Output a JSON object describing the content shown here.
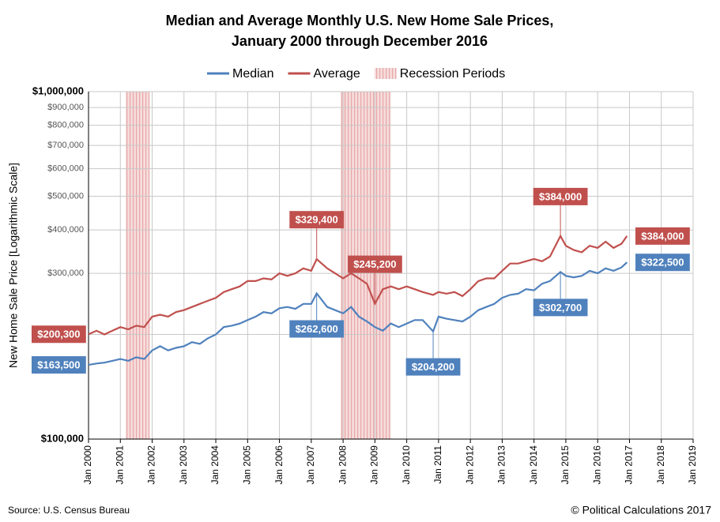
{
  "chart_data": {
    "type": "line",
    "title": [
      "Median and Average Monthly U.S. New Home Sale Prices,",
      "January 2000 through December 2016"
    ],
    "y_label": "New Home Sale Price [Logarithmic Scale]",
    "source": "Source: U.S. Census Bureau",
    "credit": "© Political Calculations 2017",
    "log_scale": true,
    "grid": true,
    "legend": "top",
    "xlim": [
      2000,
      2019
    ],
    "xticks": [
      {
        "value": 2000,
        "label": "Jan 2000"
      },
      {
        "value": 2001,
        "label": "Jan 2001"
      },
      {
        "value": 2002,
        "label": "Jan 2002"
      },
      {
        "value": 2003,
        "label": "Jan 2003"
      },
      {
        "value": 2004,
        "label": "Jan 2004"
      },
      {
        "value": 2005,
        "label": "Jan 2005"
      },
      {
        "value": 2006,
        "label": "Jan 2006"
      },
      {
        "value": 2007,
        "label": "Jan 2007"
      },
      {
        "value": 2008,
        "label": "Jan 2008"
      },
      {
        "value": 2009,
        "label": "Jan 2009"
      },
      {
        "value": 2010,
        "label": "Jan 2010"
      },
      {
        "value": 2011,
        "label": "Jan 2011"
      },
      {
        "value": 2012,
        "label": "Jan 2012"
      },
      {
        "value": 2013,
        "label": "Jan 2013"
      },
      {
        "value": 2014,
        "label": "Jan 2014"
      },
      {
        "value": 2015,
        "label": "Jan 2015"
      },
      {
        "value": 2016,
        "label": "Jan 2016"
      },
      {
        "value": 2017,
        "label": "Jan 2017"
      },
      {
        "value": 2018,
        "label": "Jan 2018"
      },
      {
        "value": 2019,
        "label": "Jan 2019"
      }
    ],
    "ylim": [
      100000,
      1000000
    ],
    "yticks": [
      {
        "value": 100000,
        "label": "$100,000"
      },
      {
        "value": 200000,
        "label": "$200,000"
      },
      {
        "value": 300000,
        "label": "$300,000"
      },
      {
        "value": 400000,
        "label": "$400,000"
      },
      {
        "value": 500000,
        "label": "$500,000"
      },
      {
        "value": 600000,
        "label": "$600,000"
      },
      {
        "value": 700000,
        "label": "$700,000"
      },
      {
        "value": 800000,
        "label": "$800,000"
      },
      {
        "value": 900000,
        "label": "$900,000"
      },
      {
        "value": 1000000,
        "label": "$1,000,000"
      }
    ],
    "recessions": {
      "name": "Recession Periods",
      "color": "#e8a0a0",
      "periods": [
        [
          2001.17,
          2001.92
        ],
        [
          2007.92,
          2009.5
        ]
      ]
    },
    "x": [
      2000,
      2000.25,
      2000.5,
      2000.75,
      2001,
      2001.25,
      2001.5,
      2001.75,
      2002,
      2002.25,
      2002.5,
      2002.75,
      2003,
      2003.25,
      2003.5,
      2003.75,
      2004,
      2004.25,
      2004.5,
      2004.75,
      2005,
      2005.25,
      2005.5,
      2005.75,
      2006,
      2006.25,
      2006.5,
      2006.75,
      2007,
      2007.17,
      2007.5,
      2007.75,
      2008,
      2008.25,
      2008.5,
      2008.75,
      2009,
      2009.25,
      2009.5,
      2009.75,
      2010,
      2010.25,
      2010.5,
      2010.83,
      2011,
      2011.25,
      2011.5,
      2011.75,
      2012,
      2012.25,
      2012.5,
      2012.75,
      2013,
      2013.25,
      2013.5,
      2013.75,
      2014,
      2014.25,
      2014.5,
      2014.83,
      2015,
      2015.25,
      2015.5,
      2015.75,
      2016,
      2016.25,
      2016.5,
      2016.75,
      2016.92
    ],
    "series": [
      {
        "name": "Median",
        "color": "#4f81bd",
        "values": [
          163500,
          165000,
          166000,
          168000,
          170000,
          168000,
          172000,
          170000,
          180000,
          185000,
          180000,
          183000,
          185000,
          190000,
          188000,
          195000,
          200000,
          210000,
          212000,
          215000,
          220000,
          225000,
          232000,
          230000,
          238000,
          240000,
          237000,
          245000,
          245000,
          262600,
          240000,
          235000,
          230000,
          240000,
          225000,
          218000,
          210000,
          205000,
          215000,
          210000,
          215000,
          220000,
          220000,
          204200,
          225000,
          222000,
          220000,
          218000,
          225000,
          235000,
          240000,
          245000,
          255000,
          260000,
          262000,
          270000,
          268000,
          280000,
          285000,
          302700,
          295000,
          292000,
          295000,
          305000,
          300000,
          310000,
          305000,
          312000,
          322500
        ],
        "value_labels": [
          "$163,500",
          null,
          null,
          null,
          null,
          null,
          null,
          null,
          null,
          null,
          null,
          null,
          null,
          null,
          null,
          null,
          null,
          null,
          null,
          null,
          null,
          null,
          null,
          null,
          null,
          null,
          null,
          null,
          null,
          "$262,600",
          null,
          null,
          null,
          null,
          null,
          null,
          null,
          null,
          null,
          null,
          null,
          null,
          null,
          "$204,200",
          null,
          null,
          null,
          null,
          null,
          null,
          null,
          null,
          null,
          null,
          null,
          null,
          null,
          null,
          null,
          "$302,700",
          null,
          null,
          null,
          null,
          null,
          null,
          null,
          null,
          "$322,500"
        ]
      },
      {
        "name": "Average",
        "color": "#c0504d",
        "values": [
          200300,
          205000,
          200000,
          205000,
          210000,
          207000,
          212000,
          210000,
          225000,
          228000,
          225000,
          232000,
          235000,
          240000,
          245000,
          250000,
          255000,
          265000,
          270000,
          275000,
          285000,
          285000,
          290000,
          288000,
          300000,
          295000,
          300000,
          310000,
          305000,
          329400,
          310000,
          300000,
          290000,
          300000,
          290000,
          280000,
          245200,
          270000,
          275000,
          270000,
          275000,
          270000,
          265000,
          260000,
          265000,
          262000,
          265000,
          258000,
          270000,
          285000,
          290000,
          290000,
          305000,
          320000,
          320000,
          325000,
          330000,
          325000,
          335000,
          384000,
          360000,
          350000,
          345000,
          360000,
          355000,
          370000,
          355000,
          365000,
          384000
        ],
        "value_labels": [
          "$200,300",
          null,
          null,
          null,
          null,
          null,
          null,
          null,
          null,
          null,
          null,
          null,
          null,
          null,
          null,
          null,
          null,
          null,
          null,
          null,
          null,
          null,
          null,
          null,
          null,
          null,
          null,
          null,
          null,
          "$329,400",
          null,
          null,
          null,
          null,
          null,
          null,
          "$245,200",
          null,
          null,
          null,
          null,
          null,
          null,
          null,
          null,
          null,
          null,
          null,
          null,
          null,
          null,
          null,
          null,
          null,
          null,
          null,
          null,
          null,
          null,
          "$384,000",
          null,
          null,
          null,
          null,
          null,
          null,
          null,
          null,
          "$384,000"
        ]
      }
    ]
  }
}
